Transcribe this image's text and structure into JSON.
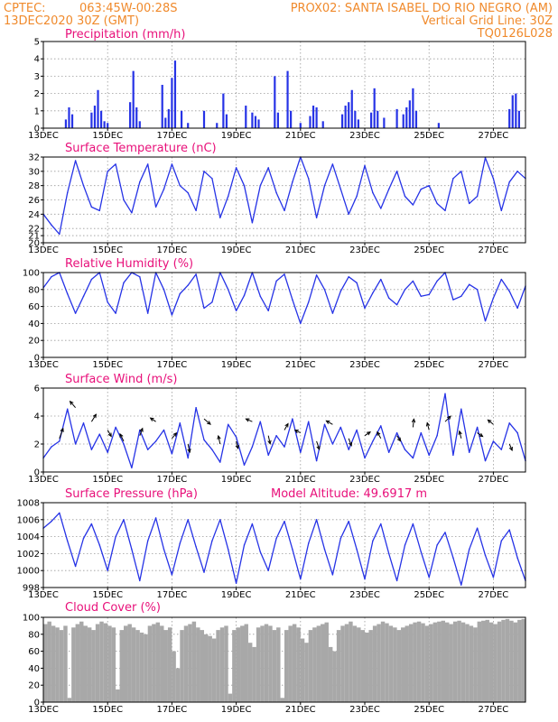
{
  "header": {
    "line1_left": "CPTEC:",
    "line1_coords": "063:45W-00:28S",
    "line1_station": "PROX02: SANTA ISABEL DO RIO NEGRO (AM)",
    "line2_left": "13DEC2020 30Z (GMT)",
    "line2_right": "Vertical Grid Line: 30Z",
    "line3_right": "TQ0126L028"
  },
  "colors": {
    "header": "#f08a2c",
    "title": "#e8107a",
    "series": "#2633e6",
    "cloud": "#a8a8a8",
    "grid": "#9a9a9a"
  },
  "x_ticks": [
    "13DEC",
    "15DEC",
    "17DEC",
    "19DEC",
    "21DEC",
    "23DEC",
    "25DEC",
    "27DEC"
  ],
  "x_tick_days": [
    0,
    2,
    4,
    6,
    8,
    10,
    12,
    14
  ],
  "chart_data": [
    {
      "type": "bar",
      "title": "Precipitation (mm/h)",
      "ylim": [
        0,
        5
      ],
      "yticks": [
        0,
        1,
        2,
        3,
        4,
        5
      ],
      "x_unit": "days after 13DEC 00Z",
      "x": [
        0.7,
        0.8,
        0.9,
        1.5,
        1.6,
        1.7,
        1.8,
        1.9,
        2.0,
        2.7,
        2.8,
        2.9,
        3.0,
        3.7,
        3.8,
        3.9,
        4.0,
        4.1,
        4.3,
        4.5,
        5.0,
        5.4,
        5.6,
        5.7,
        6.3,
        6.5,
        6.6,
        6.7,
        7.2,
        7.3,
        7.6,
        7.7,
        8.0,
        8.3,
        8.4,
        8.5,
        8.7,
        9.3,
        9.4,
        9.5,
        9.6,
        9.7,
        9.8,
        10.2,
        10.3,
        10.4,
        10.6,
        11.0,
        11.2,
        11.3,
        11.4,
        11.5,
        11.6,
        12.3,
        14.5,
        14.6,
        14.7,
        14.8
      ],
      "values": [
        0.5,
        1.2,
        0.8,
        0.9,
        1.3,
        2.2,
        1.0,
        0.4,
        0.3,
        1.5,
        3.3,
        1.2,
        0.4,
        2.5,
        0.6,
        1.1,
        2.9,
        3.9,
        1.0,
        0.3,
        1.0,
        0.3,
        2.0,
        0.8,
        1.3,
        0.9,
        0.7,
        0.5,
        3.0,
        0.9,
        3.3,
        1.0,
        0.3,
        0.7,
        1.3,
        1.2,
        0.4,
        0.8,
        1.3,
        1.5,
        2.2,
        1.0,
        0.5,
        0.9,
        2.3,
        1.0,
        0.6,
        1.1,
        0.8,
        1.2,
        1.6,
        2.3,
        1.0,
        0.3,
        1.1,
        1.9,
        2.0,
        1.0
      ]
    },
    {
      "type": "line",
      "title": "Surface Temperature (nC)",
      "ylim": [
        20,
        32
      ],
      "yticks": [
        20,
        21,
        22,
        24,
        26,
        28,
        30,
        32
      ],
      "x_unit": "days after 13DEC 00Z",
      "x": [
        0.0,
        0.25,
        0.5,
        0.75,
        1.0,
        1.25,
        1.5,
        1.75,
        2.0,
        2.25,
        2.5,
        2.75,
        3.0,
        3.25,
        3.5,
        3.75,
        4.0,
        4.25,
        4.5,
        4.75,
        5.0,
        5.25,
        5.5,
        5.75,
        6.0,
        6.25,
        6.5,
        6.75,
        7.0,
        7.25,
        7.5,
        7.75,
        8.0,
        8.25,
        8.5,
        8.75,
        9.0,
        9.25,
        9.5,
        9.75,
        10.0,
        10.25,
        10.5,
        10.75,
        11.0,
        11.25,
        11.5,
        11.75,
        12.0,
        12.25,
        12.5,
        12.75,
        13.0,
        13.25,
        13.5,
        13.75,
        14.0,
        14.25,
        14.5,
        14.75,
        15.0
      ],
      "values": [
        24,
        22.5,
        21.2,
        27,
        31.5,
        28,
        25,
        24.5,
        30,
        31,
        26,
        24.2,
        28.5,
        31,
        25,
        27.5,
        31,
        28,
        27,
        24.5,
        30,
        29,
        23.5,
        26.5,
        30.5,
        28,
        22.8,
        28,
        30.5,
        27,
        24.5,
        28.5,
        32,
        29,
        23.5,
        28,
        31,
        27.5,
        24,
        26.5,
        30.8,
        27,
        24.8,
        27.5,
        30,
        26.5,
        25.3,
        27.5,
        28,
        25.5,
        24.5,
        29,
        30,
        25.5,
        26.5,
        31.9,
        29,
        24.5,
        28.5,
        30,
        29
      ]
    },
    {
      "type": "line",
      "title": "Relative Humidity (%)",
      "ylim": [
        0,
        100
      ],
      "yticks": [
        0,
        20,
        40,
        60,
        80,
        100
      ],
      "x_unit": "days after 13DEC 00Z",
      "x": [
        0.0,
        0.25,
        0.5,
        0.75,
        1.0,
        1.25,
        1.5,
        1.75,
        2.0,
        2.25,
        2.5,
        2.75,
        3.0,
        3.25,
        3.5,
        3.75,
        4.0,
        4.25,
        4.5,
        4.75,
        5.0,
        5.25,
        5.5,
        5.75,
        6.0,
        6.25,
        6.5,
        6.75,
        7.0,
        7.25,
        7.5,
        7.75,
        8.0,
        8.25,
        8.5,
        8.75,
        9.0,
        9.25,
        9.5,
        9.75,
        10.0,
        10.25,
        10.5,
        10.75,
        11.0,
        11.25,
        11.5,
        11.75,
        12.0,
        12.25,
        12.5,
        12.75,
        13.0,
        13.25,
        13.5,
        13.75,
        14.0,
        14.25,
        14.5,
        14.75,
        15.0
      ],
      "values": [
        82,
        95,
        100,
        75,
        52,
        72,
        92,
        100,
        65,
        52,
        88,
        100,
        95,
        52,
        100,
        80,
        50,
        75,
        85,
        98,
        58,
        65,
        100,
        80,
        55,
        73,
        100,
        72,
        55,
        90,
        98,
        68,
        40,
        65,
        97,
        80,
        52,
        78,
        95,
        88,
        58,
        76,
        92,
        70,
        62,
        80,
        90,
        72,
        74,
        90,
        100,
        68,
        72,
        86,
        80,
        43,
        70,
        92,
        78,
        58,
        84
      ]
    },
    {
      "type": "line",
      "title": "Surface Wind (m/s)",
      "ylim": [
        0,
        6
      ],
      "yticks": [
        0,
        2,
        4,
        6
      ],
      "x_unit": "days after 13DEC 00Z",
      "x": [
        0.0,
        0.25,
        0.5,
        0.75,
        1.0,
        1.25,
        1.5,
        1.75,
        2.0,
        2.25,
        2.5,
        2.75,
        3.0,
        3.25,
        3.5,
        3.75,
        4.0,
        4.25,
        4.5,
        4.75,
        5.0,
        5.25,
        5.5,
        5.75,
        6.0,
        6.25,
        6.5,
        6.75,
        7.0,
        7.25,
        7.5,
        7.75,
        8.0,
        8.25,
        8.5,
        8.75,
        9.0,
        9.25,
        9.5,
        9.75,
        10.0,
        10.25,
        10.5,
        10.75,
        11.0,
        11.25,
        11.5,
        11.75,
        12.0,
        12.25,
        12.5,
        12.75,
        13.0,
        13.25,
        13.5,
        13.75,
        14.0,
        14.25,
        14.5,
        14.75,
        15.0
      ],
      "values": [
        1.0,
        1.8,
        2.2,
        4.5,
        2.0,
        3.5,
        1.6,
        2.7,
        1.4,
        3.2,
        2.0,
        0.3,
        3.0,
        1.6,
        2.2,
        3.0,
        1.3,
        3.5,
        1.0,
        4.6,
        2.3,
        1.6,
        0.7,
        3.4,
        2.5,
        0.5,
        1.8,
        3.6,
        1.2,
        2.6,
        1.8,
        3.8,
        1.4,
        3.6,
        0.8,
        3.4,
        2.0,
        3.2,
        1.6,
        3.0,
        1.0,
        2.2,
        3.3,
        1.4,
        2.8,
        1.6,
        1.0,
        2.8,
        1.2,
        2.6,
        5.6,
        1.2,
        4.5,
        1.4,
        3.2,
        0.8,
        2.2,
        1.6,
        3.5,
        2.8,
        0.8
      ],
      "vectors": [
        {
          "x": 0.5,
          "speed": 2.4,
          "u": 0.8,
          "v": 2.2
        },
        {
          "x": 1.0,
          "speed": 4.6,
          "u": -1.2,
          "v": 1.4
        },
        {
          "x": 1.5,
          "speed": 3.6,
          "u": 1.0,
          "v": 1.6
        },
        {
          "x": 2.0,
          "speed": 3.0,
          "u": 0.8,
          "v": -1.4
        },
        {
          "x": 2.5,
          "speed": 2.2,
          "u": -0.8,
          "v": 1.6
        },
        {
          "x": 3.0,
          "speed": 2.6,
          "u": 0.6,
          "v": 1.6
        },
        {
          "x": 3.5,
          "speed": 3.6,
          "u": -1.2,
          "v": 0.8
        },
        {
          "x": 4.0,
          "speed": 2.4,
          "u": 1.0,
          "v": 1.2
        },
        {
          "x": 4.5,
          "speed": 2.0,
          "u": 0.4,
          "v": -1.8
        },
        {
          "x": 5.0,
          "speed": 3.8,
          "u": 1.4,
          "v": -1.2
        },
        {
          "x": 5.5,
          "speed": 2.0,
          "u": -0.4,
          "v": 1.8
        },
        {
          "x": 6.0,
          "speed": 2.2,
          "u": 0.4,
          "v": -1.6
        },
        {
          "x": 6.5,
          "speed": 3.6,
          "u": -1.4,
          "v": 0.6
        },
        {
          "x": 7.0,
          "speed": 2.6,
          "u": 0.4,
          "v": -1.8
        },
        {
          "x": 7.5,
          "speed": 3.0,
          "u": 0.8,
          "v": 1.4
        },
        {
          "x": 8.0,
          "speed": 2.8,
          "u": -1.2,
          "v": 0.6
        },
        {
          "x": 8.5,
          "speed": 2.2,
          "u": 0.6,
          "v": -1.8
        },
        {
          "x": 9.0,
          "speed": 3.4,
          "u": -1.4,
          "v": 0.8
        },
        {
          "x": 9.5,
          "speed": 2.4,
          "u": 0.6,
          "v": -1.6
        },
        {
          "x": 10.0,
          "speed": 2.6,
          "u": 1.2,
          "v": 0.8
        },
        {
          "x": 10.5,
          "speed": 2.4,
          "u": -0.8,
          "v": 1.4
        },
        {
          "x": 11.0,
          "speed": 2.6,
          "u": 0.8,
          "v": -1.2
        },
        {
          "x": 11.5,
          "speed": 3.2,
          "u": 0.2,
          "v": 1.8
        },
        {
          "x": 12.0,
          "speed": 3.0,
          "u": -0.4,
          "v": 1.6
        },
        {
          "x": 12.5,
          "speed": 3.6,
          "u": 1.2,
          "v": 1.2
        },
        {
          "x": 13.0,
          "speed": 2.4,
          "u": -0.4,
          "v": 1.6
        },
        {
          "x": 13.5,
          "speed": 2.8,
          "u": 1.2,
          "v": -0.8
        },
        {
          "x": 14.0,
          "speed": 3.4,
          "u": -1.2,
          "v": 1.0
        },
        {
          "x": 14.5,
          "speed": 2.0,
          "u": 0.6,
          "v": -1.4
        }
      ]
    },
    {
      "type": "line",
      "title": "Surface Pressure (hPa)",
      "annotation": "Model Altitude: 49.6917 m",
      "ylim": [
        998,
        1008
      ],
      "yticks": [
        998,
        1000,
        1002,
        1004,
        1006,
        1008
      ],
      "x_unit": "days after 13DEC 00Z",
      "x": [
        0.0,
        0.25,
        0.5,
        0.75,
        1.0,
        1.25,
        1.5,
        1.75,
        2.0,
        2.25,
        2.5,
        2.75,
        3.0,
        3.25,
        3.5,
        3.75,
        4.0,
        4.25,
        4.5,
        4.75,
        5.0,
        5.25,
        5.5,
        5.75,
        6.0,
        6.25,
        6.5,
        6.75,
        7.0,
        7.25,
        7.5,
        7.75,
        8.0,
        8.25,
        8.5,
        8.75,
        9.0,
        9.25,
        9.5,
        9.75,
        10.0,
        10.25,
        10.5,
        10.75,
        11.0,
        11.25,
        11.5,
        11.75,
        12.0,
        12.25,
        12.5,
        12.75,
        13.0,
        13.25,
        13.5,
        13.75,
        14.0,
        14.25,
        14.5,
        14.75,
        15.0
      ],
      "values": [
        1005,
        1005.8,
        1006.8,
        1003.5,
        1000.5,
        1003.8,
        1005.5,
        1003,
        1000,
        1004,
        1006,
        1002.5,
        998.8,
        1003.5,
        1006.2,
        1002.5,
        999.5,
        1003.2,
        1006,
        1002.8,
        999.8,
        1003.5,
        1006,
        1002.5,
        998.5,
        1003,
        1005.5,
        1002.2,
        1000,
        1003.8,
        1005.8,
        1002.5,
        999,
        1003.2,
        1006,
        1002.5,
        999.5,
        1003.8,
        1005.8,
        1002.5,
        999,
        1003.5,
        1005.5,
        1002,
        998.8,
        1003,
        1005.5,
        1002.2,
        999.2,
        1003,
        1004.5,
        1001.5,
        998.3,
        1002.5,
        1005,
        1001.8,
        999.2,
        1003.5,
        1004.8,
        1001.5,
        998.8
      ]
    },
    {
      "type": "bar",
      "title": "Cloud Cover (%)",
      "ylim": [
        0,
        100
      ],
      "yticks": [
        0,
        20,
        40,
        60,
        80,
        100
      ],
      "x_unit": "days after 13DEC 00Z",
      "x": [
        0.0,
        0.125,
        0.25,
        0.375,
        0.5,
        0.625,
        0.75,
        0.875,
        1.0,
        1.125,
        1.25,
        1.375,
        1.5,
        1.625,
        1.75,
        1.875,
        2.0,
        2.125,
        2.25,
        2.375,
        2.5,
        2.625,
        2.75,
        2.875,
        3.0,
        3.125,
        3.25,
        3.375,
        3.5,
        3.625,
        3.75,
        3.875,
        4.0,
        4.125,
        4.25,
        4.375,
        4.5,
        4.625,
        4.75,
        4.875,
        5.0,
        5.125,
        5.25,
        5.375,
        5.5,
        5.625,
        5.75,
        5.875,
        6.0,
        6.125,
        6.25,
        6.375,
        6.5,
        6.625,
        6.75,
        6.875,
        7.0,
        7.125,
        7.25,
        7.375,
        7.5,
        7.625,
        7.75,
        7.875,
        8.0,
        8.125,
        8.25,
        8.375,
        8.5,
        8.625,
        8.75,
        8.875,
        9.0,
        9.125,
        9.25,
        9.375,
        9.5,
        9.625,
        9.75,
        9.875,
        10.0,
        10.125,
        10.25,
        10.375,
        10.5,
        10.625,
        10.75,
        10.875,
        11.0,
        11.125,
        11.25,
        11.375,
        11.5,
        11.625,
        11.75,
        11.875,
        12.0,
        12.125,
        12.25,
        12.375,
        12.5,
        12.625,
        12.75,
        12.875,
        13.0,
        13.125,
        13.25,
        13.375,
        13.5,
        13.625,
        13.75,
        13.875,
        14.0,
        14.125,
        14.25,
        14.375,
        14.5,
        14.625,
        14.75,
        14.875
      ],
      "values": [
        92,
        95,
        90,
        88,
        85,
        90,
        5,
        88,
        92,
        95,
        90,
        88,
        85,
        92,
        95,
        93,
        90,
        88,
        15,
        85,
        90,
        92,
        88,
        85,
        82,
        80,
        90,
        92,
        94,
        90,
        85,
        88,
        60,
        40,
        85,
        90,
        92,
        95,
        88,
        85,
        80,
        78,
        75,
        85,
        88,
        90,
        10,
        85,
        88,
        90,
        92,
        70,
        65,
        88,
        90,
        92,
        90,
        85,
        88,
        5,
        85,
        90,
        92,
        88,
        75,
        70,
        85,
        88,
        90,
        92,
        94,
        65,
        60,
        85,
        90,
        92,
        95,
        90,
        88,
        85,
        82,
        85,
        90,
        92,
        95,
        93,
        90,
        88,
        85,
        88,
        90,
        92,
        94,
        95,
        93,
        90,
        92,
        94,
        95,
        96,
        94,
        92,
        95,
        96,
        94,
        92,
        90,
        88,
        95,
        96,
        97,
        94,
        92,
        95,
        97,
        98,
        96,
        94,
        97,
        98
      ]
    }
  ]
}
